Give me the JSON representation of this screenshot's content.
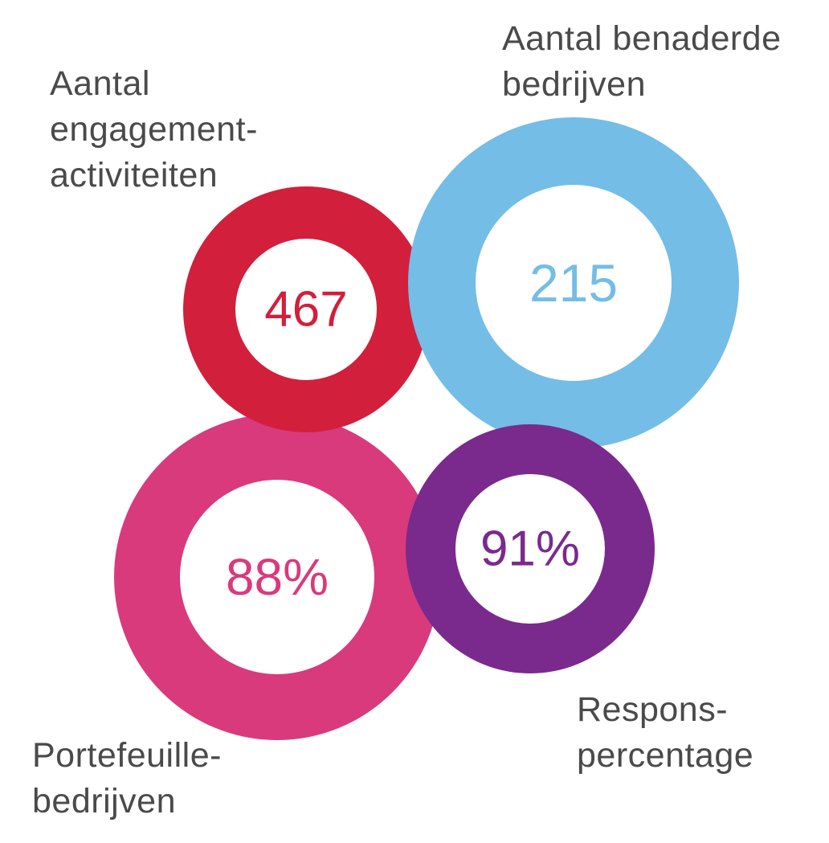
{
  "rings": {
    "engagement": {
      "value": "467",
      "label_lines": [
        "Aantal",
        "engagement-",
        "activiteiten"
      ],
      "color": "#d21f3c"
    },
    "companies": {
      "value": "215",
      "label_lines": [
        "Aantal benaderde",
        "bedrijven"
      ],
      "color": "#74bde6"
    },
    "portfolio": {
      "value": "88%",
      "label_lines": [
        "Portefeuille-",
        "bedrijven"
      ],
      "color": "#d93a7c"
    },
    "response": {
      "value": "91%",
      "label_lines": [
        "Respons-",
        "percentage"
      ],
      "color": "#7a2a8c"
    }
  }
}
